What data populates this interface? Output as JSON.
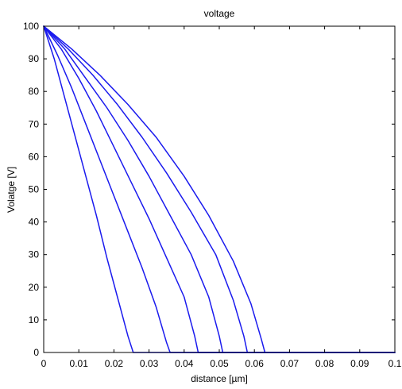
{
  "chart_data": {
    "type": "line",
    "title": "voltage",
    "xlabel": "distance  [µm]",
    "ylabel": "Volatge [V]",
    "xlim": [
      0,
      0.1
    ],
    "ylim": [
      0,
      100
    ],
    "xticks": [
      0,
      0.01,
      0.02,
      0.03,
      0.04,
      0.05,
      0.06,
      0.07,
      0.08,
      0.09,
      0.1
    ],
    "xtick_labels": [
      "0",
      "0.01",
      "0.02",
      "0.03",
      "0.04",
      "0.05",
      "0.06",
      "0.07",
      "0.08",
      "0.09",
      "0.1"
    ],
    "yticks": [
      0,
      10,
      20,
      30,
      40,
      50,
      60,
      70,
      80,
      90,
      100
    ],
    "ytick_labels": [
      "0",
      "10",
      "20",
      "30",
      "40",
      "50",
      "60",
      "70",
      "80",
      "90",
      "100"
    ],
    "grid": false,
    "line_color": "#1a1aee",
    "series": [
      {
        "x": [
          0,
          0.003,
          0.006,
          0.009,
          0.012,
          0.015,
          0.018,
          0.021,
          0.024,
          0.0255,
          0.026,
          0.1
        ],
        "y": [
          100,
          90,
          78,
          66,
          54,
          42,
          29,
          17,
          5,
          0,
          0,
          0
        ]
      },
      {
        "x": [
          0,
          0.004,
          0.008,
          0.012,
          0.016,
          0.02,
          0.024,
          0.028,
          0.032,
          0.035,
          0.036,
          0.1
        ],
        "y": [
          100,
          91,
          81,
          70,
          59,
          48,
          37,
          26,
          14,
          3,
          0,
          0
        ]
      },
      {
        "x": [
          0,
          0.005,
          0.01,
          0.015,
          0.02,
          0.025,
          0.03,
          0.035,
          0.04,
          0.043,
          0.044,
          0.1
        ],
        "y": [
          100,
          93,
          84,
          74,
          63,
          52,
          41,
          29,
          17,
          5,
          0,
          0
        ]
      },
      {
        "x": [
          0,
          0.006,
          0.012,
          0.018,
          0.024,
          0.03,
          0.036,
          0.042,
          0.047,
          0.05,
          0.051,
          0.1
        ],
        "y": [
          100,
          93,
          84,
          75,
          65,
          54,
          42,
          30,
          17,
          5,
          0,
          0
        ]
      },
      {
        "x": [
          0,
          0.007,
          0.014,
          0.021,
          0.028,
          0.035,
          0.042,
          0.049,
          0.054,
          0.057,
          0.058,
          0.1
        ],
        "y": [
          100,
          93,
          85,
          76,
          66,
          55,
          43,
          30,
          16,
          5,
          0,
          0
        ]
      },
      {
        "x": [
          0,
          0.008,
          0.016,
          0.024,
          0.032,
          0.04,
          0.047,
          0.054,
          0.059,
          0.062,
          0.063,
          0.1
        ],
        "y": [
          100,
          93,
          85,
          76,
          66,
          54,
          42,
          28,
          15,
          4,
          0,
          0
        ]
      }
    ]
  }
}
